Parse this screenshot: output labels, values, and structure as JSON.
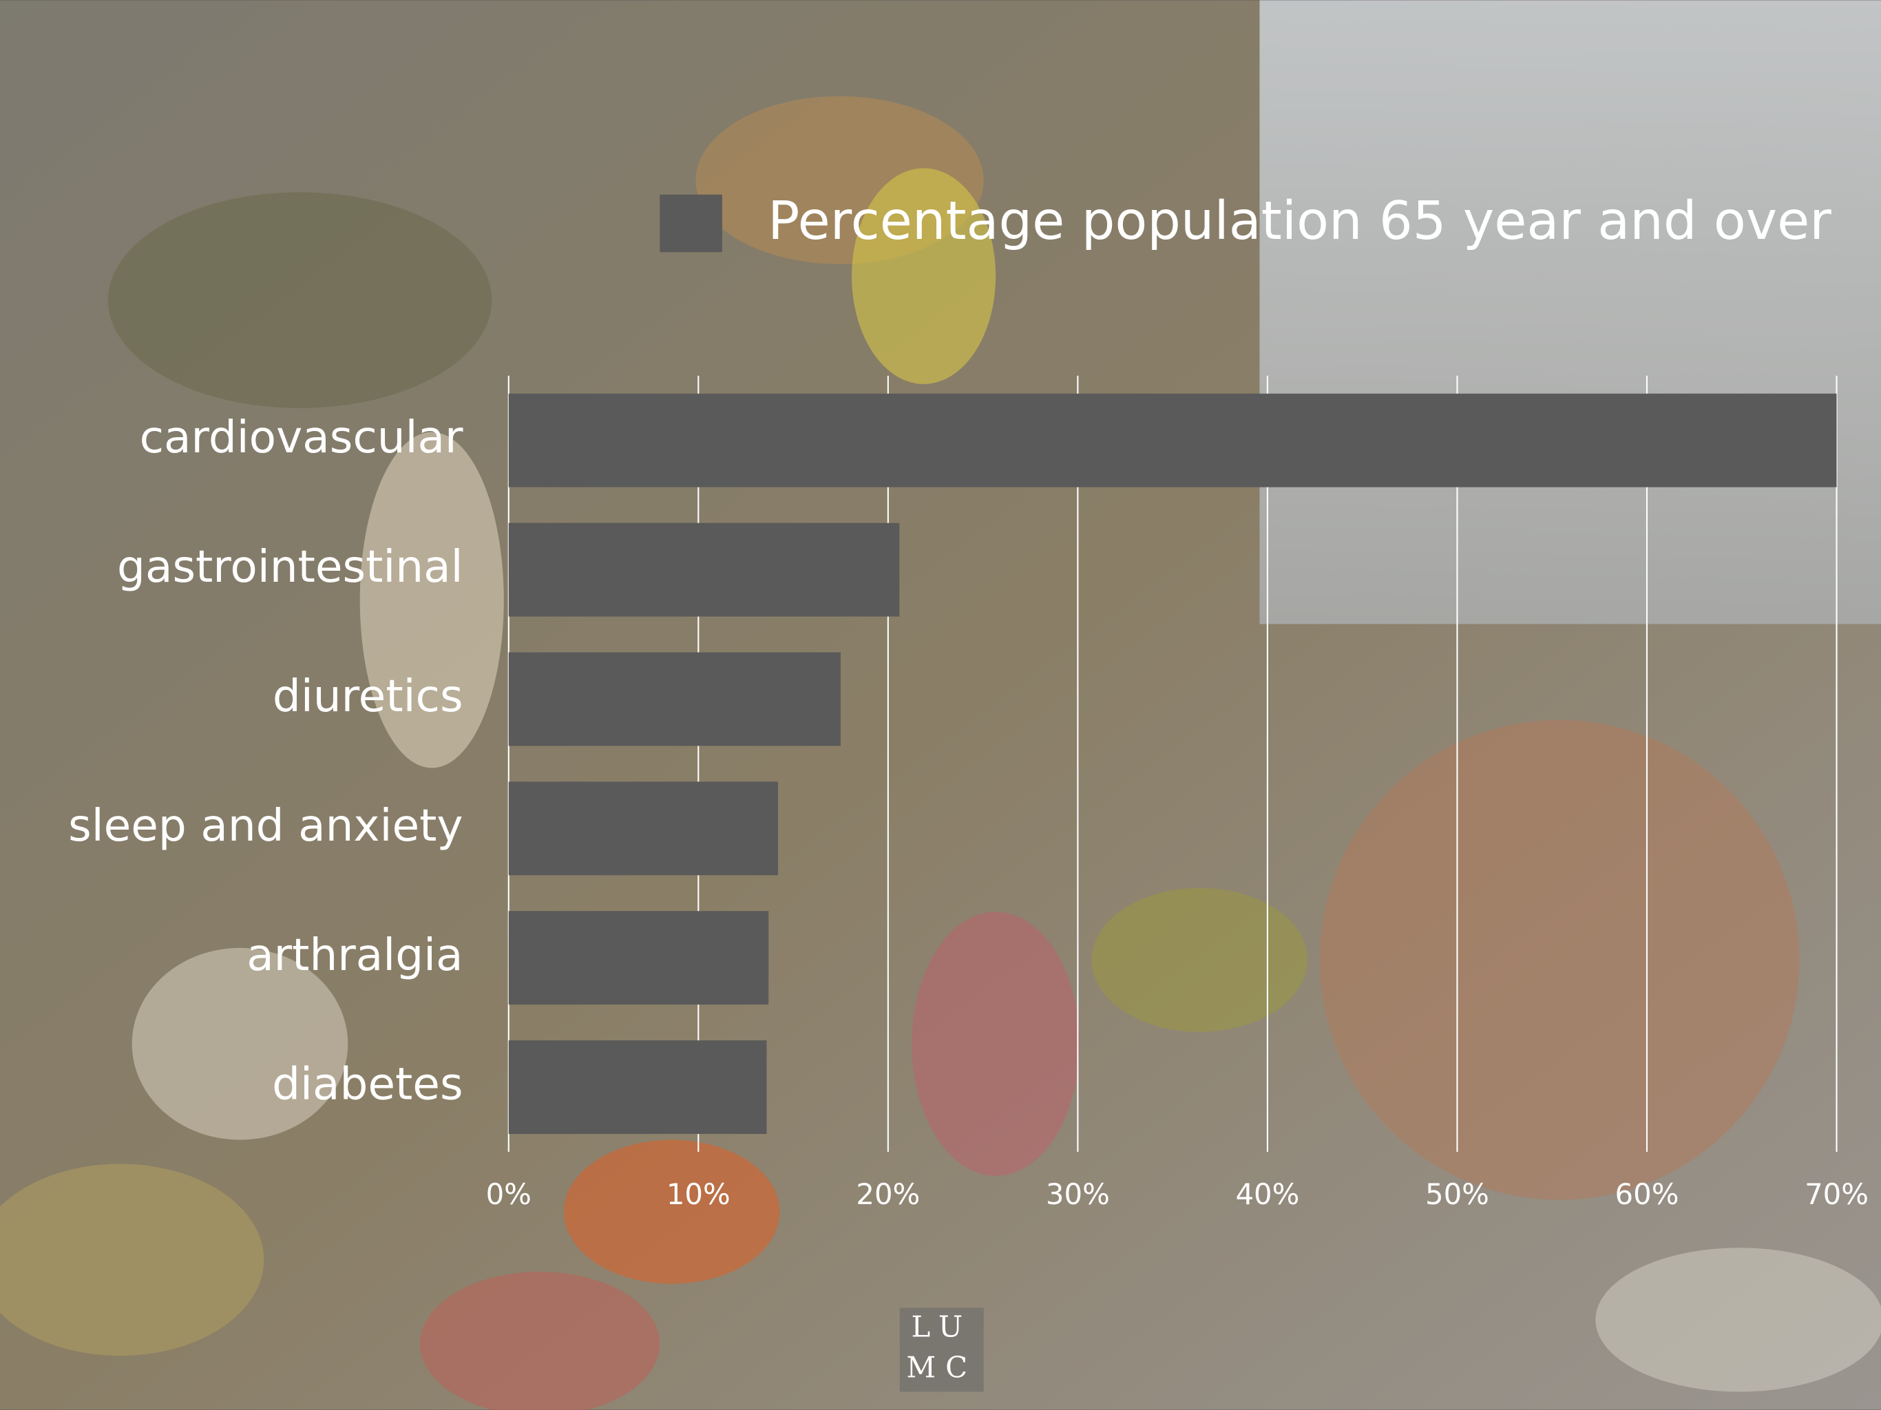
{
  "chart_data": {
    "type": "bar",
    "orientation": "horizontal",
    "categories": [
      "cardiovascular",
      "gastrointestinal",
      "diuretics",
      "sleep and anxiety",
      "arthralgia",
      "diabetes"
    ],
    "series": [
      {
        "name": "Percentage population 65 year and over",
        "color": "#5a5a5a",
        "values": [
          70,
          20.6,
          17.5,
          14.2,
          13.7,
          13.6
        ]
      }
    ],
    "xlim": [
      0,
      70
    ],
    "xticks": [
      {
        "value": 0,
        "label": "0%"
      },
      {
        "value": 10,
        "label": "10%"
      },
      {
        "value": 20,
        "label": "20%"
      },
      {
        "value": 30,
        "label": "30%"
      },
      {
        "value": 40,
        "label": "40%"
      },
      {
        "value": 50,
        "label": "50%"
      },
      {
        "value": 60,
        "label": "60%"
      },
      {
        "value": 70,
        "label": "70%"
      }
    ],
    "grid": true,
    "legend": "top"
  },
  "logo": {
    "top": "LU",
    "bottom": "MC"
  }
}
